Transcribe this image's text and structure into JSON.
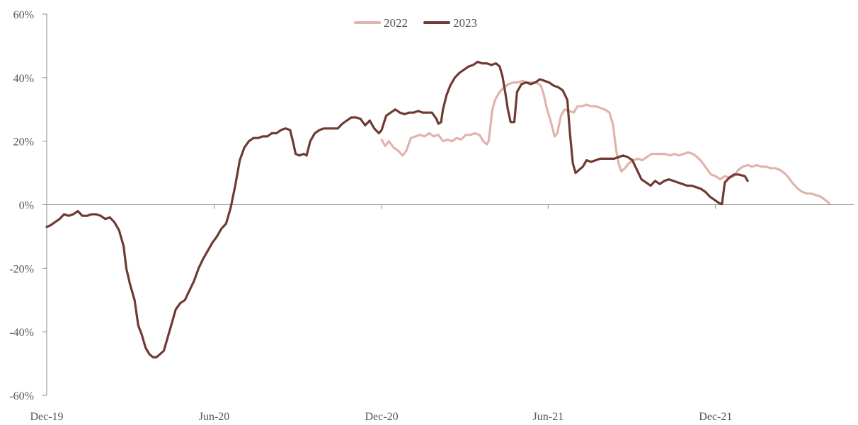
{
  "chart_data": {
    "type": "line",
    "title": "",
    "xlabel": "",
    "ylabel": "",
    "ylim": [
      -0.6,
      0.6
    ],
    "y_ticks": [
      {
        "value": 0.6,
        "label": "60%"
      },
      {
        "value": 0.4,
        "label": "40%"
      },
      {
        "value": 0.2,
        "label": "20%"
      },
      {
        "value": 0.0,
        "label": "0%"
      },
      {
        "value": -0.2,
        "label": "-20%"
      },
      {
        "value": -0.4,
        "label": "-40%"
      },
      {
        "value": -0.6,
        "label": "-60%"
      }
    ],
    "x_range": [
      "2019-12-01",
      "2022-05-01"
    ],
    "x_ticks": [
      {
        "date": "2019-12-01",
        "label": "Dec-19"
      },
      {
        "date": "2020-06-01",
        "label": "Jun-20"
      },
      {
        "date": "2020-12-01",
        "label": "Dec-20"
      },
      {
        "date": "2021-06-01",
        "label": "Jun-21"
      },
      {
        "date": "2021-12-01",
        "label": "Dec-21"
      }
    ],
    "grid": false,
    "legend": {
      "position": "top-center"
    },
    "series": [
      {
        "name": "2022",
        "color": "#e0b4ac",
        "points": [
          [
            "2020-12-01",
            0.205
          ],
          [
            "2020-12-05",
            0.185
          ],
          [
            "2020-12-09",
            0.2
          ],
          [
            "2020-12-14",
            0.18
          ],
          [
            "2020-12-19",
            0.17
          ],
          [
            "2020-12-24",
            0.155
          ],
          [
            "2020-12-28",
            0.17
          ],
          [
            "2021-01-02",
            0.21
          ],
          [
            "2021-01-07",
            0.215
          ],
          [
            "2021-01-12",
            0.22
          ],
          [
            "2021-01-17",
            0.215
          ],
          [
            "2021-01-22",
            0.225
          ],
          [
            "2021-01-27",
            0.215
          ],
          [
            "2021-02-01",
            0.22
          ],
          [
            "2021-02-06",
            0.2
          ],
          [
            "2021-02-11",
            0.205
          ],
          [
            "2021-02-16",
            0.2
          ],
          [
            "2021-02-21",
            0.21
          ],
          [
            "2021-02-26",
            0.205
          ],
          [
            "2021-03-03",
            0.22
          ],
          [
            "2021-03-08",
            0.22
          ],
          [
            "2021-03-13",
            0.225
          ],
          [
            "2021-03-18",
            0.22
          ],
          [
            "2021-03-22",
            0.2
          ],
          [
            "2021-03-26",
            0.19
          ],
          [
            "2021-03-28",
            0.2
          ],
          [
            "2021-04-01",
            0.3
          ],
          [
            "2021-04-04",
            0.33
          ],
          [
            "2021-04-09",
            0.355
          ],
          [
            "2021-04-14",
            0.37
          ],
          [
            "2021-04-19",
            0.38
          ],
          [
            "2021-04-24",
            0.385
          ],
          [
            "2021-04-29",
            0.385
          ],
          [
            "2021-05-04",
            0.39
          ],
          [
            "2021-05-09",
            0.385
          ],
          [
            "2021-05-14",
            0.385
          ],
          [
            "2021-05-19",
            0.385
          ],
          [
            "2021-05-24",
            0.375
          ],
          [
            "2021-05-27",
            0.35
          ],
          [
            "2021-05-30",
            0.31
          ],
          [
            "2021-06-02",
            0.28
          ],
          [
            "2021-06-05",
            0.25
          ],
          [
            "2021-06-08",
            0.215
          ],
          [
            "2021-06-11",
            0.225
          ],
          [
            "2021-06-15",
            0.28
          ],
          [
            "2021-06-19",
            0.3
          ],
          [
            "2021-06-24",
            0.295
          ],
          [
            "2021-06-29",
            0.29
          ],
          [
            "2021-07-03",
            0.31
          ],
          [
            "2021-07-08",
            0.31
          ],
          [
            "2021-07-13",
            0.315
          ],
          [
            "2021-07-18",
            0.31
          ],
          [
            "2021-07-23",
            0.31
          ],
          [
            "2021-07-28",
            0.305
          ],
          [
            "2021-08-02",
            0.3
          ],
          [
            "2021-08-07",
            0.29
          ],
          [
            "2021-08-11",
            0.25
          ],
          [
            "2021-08-14",
            0.18
          ],
          [
            "2021-08-17",
            0.13
          ],
          [
            "2021-08-20",
            0.105
          ],
          [
            "2021-08-24",
            0.115
          ],
          [
            "2021-08-28",
            0.13
          ],
          [
            "2021-09-02",
            0.14
          ],
          [
            "2021-09-07",
            0.145
          ],
          [
            "2021-09-12",
            0.14
          ],
          [
            "2021-09-17",
            0.15
          ],
          [
            "2021-09-22",
            0.16
          ],
          [
            "2021-09-27",
            0.16
          ],
          [
            "2021-10-02",
            0.16
          ],
          [
            "2021-10-07",
            0.16
          ],
          [
            "2021-10-12",
            0.155
          ],
          [
            "2021-10-17",
            0.16
          ],
          [
            "2021-10-22",
            0.155
          ],
          [
            "2021-10-27",
            0.16
          ],
          [
            "2021-11-01",
            0.165
          ],
          [
            "2021-11-06",
            0.16
          ],
          [
            "2021-11-11",
            0.15
          ],
          [
            "2021-11-16",
            0.135
          ],
          [
            "2021-11-21",
            0.115
          ],
          [
            "2021-11-26",
            0.095
          ],
          [
            "2021-12-01",
            0.09
          ],
          [
            "2021-12-06",
            0.08
          ],
          [
            "2021-12-11",
            0.09
          ],
          [
            "2021-12-16",
            0.085
          ],
          [
            "2021-12-21",
            0.09
          ],
          [
            "2021-12-26",
            0.11
          ],
          [
            "2021-12-31",
            0.12
          ],
          [
            "2022-01-05",
            0.125
          ],
          [
            "2022-01-10",
            0.12
          ],
          [
            "2022-01-15",
            0.125
          ],
          [
            "2022-01-20",
            0.12
          ],
          [
            "2022-01-25",
            0.12
          ],
          [
            "2022-01-30",
            0.115
          ],
          [
            "2022-02-04",
            0.115
          ],
          [
            "2022-02-09",
            0.11
          ],
          [
            "2022-02-14",
            0.1
          ],
          [
            "2022-02-19",
            0.085
          ],
          [
            "2022-02-24",
            0.065
          ],
          [
            "2022-03-01",
            0.05
          ],
          [
            "2022-03-06",
            0.04
          ],
          [
            "2022-03-11",
            0.035
          ],
          [
            "2022-03-16",
            0.035
          ],
          [
            "2022-03-21",
            0.03
          ],
          [
            "2022-03-26",
            0.025
          ],
          [
            "2022-03-31",
            0.015
          ],
          [
            "2022-04-04",
            0.005
          ]
        ]
      },
      {
        "name": "2023",
        "color": "#6e3a32",
        "points": [
          [
            "2019-12-01",
            -0.07
          ],
          [
            "2019-12-05",
            -0.065
          ],
          [
            "2019-12-10",
            -0.055
          ],
          [
            "2019-12-15",
            -0.045
          ],
          [
            "2019-12-20",
            -0.03
          ],
          [
            "2019-12-25",
            -0.035
          ],
          [
            "2019-12-30",
            -0.03
          ],
          [
            "2020-01-04",
            -0.02
          ],
          [
            "2020-01-09",
            -0.035
          ],
          [
            "2020-01-14",
            -0.035
          ],
          [
            "2020-01-19",
            -0.03
          ],
          [
            "2020-01-24",
            -0.03
          ],
          [
            "2020-01-29",
            -0.035
          ],
          [
            "2020-02-03",
            -0.045
          ],
          [
            "2020-02-08",
            -0.04
          ],
          [
            "2020-02-13",
            -0.055
          ],
          [
            "2020-02-18",
            -0.08
          ],
          [
            "2020-02-23",
            -0.13
          ],
          [
            "2020-02-26",
            -0.2
          ],
          [
            "2020-03-01",
            -0.25
          ],
          [
            "2020-03-06",
            -0.3
          ],
          [
            "2020-03-10",
            -0.38
          ],
          [
            "2020-03-14",
            -0.41
          ],
          [
            "2020-03-18",
            -0.45
          ],
          [
            "2020-03-22",
            -0.47
          ],
          [
            "2020-03-26",
            -0.48
          ],
          [
            "2020-03-30",
            -0.48
          ],
          [
            "2020-04-03",
            -0.47
          ],
          [
            "2020-04-07",
            -0.46
          ],
          [
            "2020-04-12",
            -0.41
          ],
          [
            "2020-04-16",
            -0.37
          ],
          [
            "2020-04-20",
            -0.33
          ],
          [
            "2020-04-25",
            -0.31
          ],
          [
            "2020-04-30",
            -0.3
          ],
          [
            "2020-05-05",
            -0.27
          ],
          [
            "2020-05-10",
            -0.24
          ],
          [
            "2020-05-15",
            -0.2
          ],
          [
            "2020-05-20",
            -0.17
          ],
          [
            "2020-05-25",
            -0.145
          ],
          [
            "2020-05-30",
            -0.12
          ],
          [
            "2020-06-04",
            -0.1
          ],
          [
            "2020-06-09",
            -0.075
          ],
          [
            "2020-06-14",
            -0.06
          ],
          [
            "2020-06-19",
            -0.01
          ],
          [
            "2020-06-24",
            0.06
          ],
          [
            "2020-06-29",
            0.14
          ],
          [
            "2020-07-04",
            0.18
          ],
          [
            "2020-07-09",
            0.2
          ],
          [
            "2020-07-14",
            0.21
          ],
          [
            "2020-07-19",
            0.21
          ],
          [
            "2020-07-24",
            0.215
          ],
          [
            "2020-07-29",
            0.215
          ],
          [
            "2020-08-03",
            0.225
          ],
          [
            "2020-08-08",
            0.225
          ],
          [
            "2020-08-13",
            0.235
          ],
          [
            "2020-08-18",
            0.24
          ],
          [
            "2020-08-23",
            0.235
          ],
          [
            "2020-08-26",
            0.2
          ],
          [
            "2020-08-29",
            0.16
          ],
          [
            "2020-09-02",
            0.155
          ],
          [
            "2020-09-07",
            0.16
          ],
          [
            "2020-09-10",
            0.155
          ],
          [
            "2020-09-14",
            0.2
          ],
          [
            "2020-09-19",
            0.225
          ],
          [
            "2020-09-24",
            0.235
          ],
          [
            "2020-09-29",
            0.24
          ],
          [
            "2020-10-04",
            0.24
          ],
          [
            "2020-10-09",
            0.24
          ],
          [
            "2020-10-14",
            0.24
          ],
          [
            "2020-10-19",
            0.255
          ],
          [
            "2020-10-24",
            0.265
          ],
          [
            "2020-10-29",
            0.275
          ],
          [
            "2020-11-03",
            0.275
          ],
          [
            "2020-11-08",
            0.27
          ],
          [
            "2020-11-13",
            0.25
          ],
          [
            "2020-11-18",
            0.265
          ],
          [
            "2020-11-23",
            0.24
          ],
          [
            "2020-11-28",
            0.225
          ],
          [
            "2020-12-01",
            0.235
          ],
          [
            "2020-12-06",
            0.28
          ],
          [
            "2020-12-11",
            0.29
          ],
          [
            "2020-12-16",
            0.3
          ],
          [
            "2020-12-21",
            0.29
          ],
          [
            "2020-12-26",
            0.285
          ],
          [
            "2020-12-31",
            0.29
          ],
          [
            "2021-01-05",
            0.29
          ],
          [
            "2021-01-10",
            0.295
          ],
          [
            "2021-01-15",
            0.29
          ],
          [
            "2021-01-20",
            0.29
          ],
          [
            "2021-01-25",
            0.29
          ],
          [
            "2021-01-30",
            0.27
          ],
          [
            "2021-02-01",
            0.255
          ],
          [
            "2021-02-04",
            0.26
          ],
          [
            "2021-02-06",
            0.3
          ],
          [
            "2021-02-10",
            0.345
          ],
          [
            "2021-02-14",
            0.375
          ],
          [
            "2021-02-19",
            0.4
          ],
          [
            "2021-02-24",
            0.415
          ],
          [
            "2021-03-01",
            0.425
          ],
          [
            "2021-03-06",
            0.435
          ],
          [
            "2021-03-11",
            0.44
          ],
          [
            "2021-03-16",
            0.45
          ],
          [
            "2021-03-21",
            0.445
          ],
          [
            "2021-03-26",
            0.445
          ],
          [
            "2021-03-31",
            0.44
          ],
          [
            "2021-04-05",
            0.445
          ],
          [
            "2021-04-09",
            0.435
          ],
          [
            "2021-04-12",
            0.405
          ],
          [
            "2021-04-15",
            0.355
          ],
          [
            "2021-04-18",
            0.3
          ],
          [
            "2021-04-21",
            0.26
          ],
          [
            "2021-04-25",
            0.26
          ],
          [
            "2021-04-28",
            0.355
          ],
          [
            "2021-05-03",
            0.38
          ],
          [
            "2021-05-08",
            0.385
          ],
          [
            "2021-05-13",
            0.38
          ],
          [
            "2021-05-18",
            0.385
          ],
          [
            "2021-05-23",
            0.395
          ],
          [
            "2021-05-28",
            0.39
          ],
          [
            "2021-06-02",
            0.385
          ],
          [
            "2021-06-07",
            0.375
          ],
          [
            "2021-06-12",
            0.37
          ],
          [
            "2021-06-17",
            0.36
          ],
          [
            "2021-06-22",
            0.33
          ],
          [
            "2021-06-25",
            0.22
          ],
          [
            "2021-06-28",
            0.13
          ],
          [
            "2021-07-01",
            0.1
          ],
          [
            "2021-07-05",
            0.11
          ],
          [
            "2021-07-09",
            0.12
          ],
          [
            "2021-07-13",
            0.14
          ],
          [
            "2021-07-18",
            0.135
          ],
          [
            "2021-07-23",
            0.14
          ],
          [
            "2021-07-28",
            0.145
          ],
          [
            "2021-08-02",
            0.145
          ],
          [
            "2021-08-07",
            0.145
          ],
          [
            "2021-08-12",
            0.145
          ],
          [
            "2021-08-17",
            0.15
          ],
          [
            "2021-08-22",
            0.155
          ],
          [
            "2021-08-27",
            0.15
          ],
          [
            "2021-09-01",
            0.14
          ],
          [
            "2021-09-06",
            0.11
          ],
          [
            "2021-09-11",
            0.08
          ],
          [
            "2021-09-16",
            0.07
          ],
          [
            "2021-09-21",
            0.06
          ],
          [
            "2021-09-26",
            0.075
          ],
          [
            "2021-10-01",
            0.065
          ],
          [
            "2021-10-06",
            0.075
          ],
          [
            "2021-10-11",
            0.08
          ],
          [
            "2021-10-16",
            0.075
          ],
          [
            "2021-10-21",
            0.07
          ],
          [
            "2021-10-26",
            0.065
          ],
          [
            "2021-10-31",
            0.06
          ],
          [
            "2021-11-05",
            0.06
          ],
          [
            "2021-11-10",
            0.055
          ],
          [
            "2021-11-15",
            0.05
          ],
          [
            "2021-11-20",
            0.04
          ],
          [
            "2021-11-25",
            0.025
          ],
          [
            "2021-11-30",
            0.015
          ],
          [
            "2021-12-05",
            0.005
          ],
          [
            "2021-12-08",
            0.002
          ],
          [
            "2021-12-11",
            0.07
          ],
          [
            "2021-12-16",
            0.085
          ],
          [
            "2021-12-21",
            0.095
          ],
          [
            "2021-12-26",
            0.095
          ],
          [
            "2022-01-02",
            0.09
          ],
          [
            "2022-01-05",
            0.075
          ]
        ]
      }
    ]
  }
}
